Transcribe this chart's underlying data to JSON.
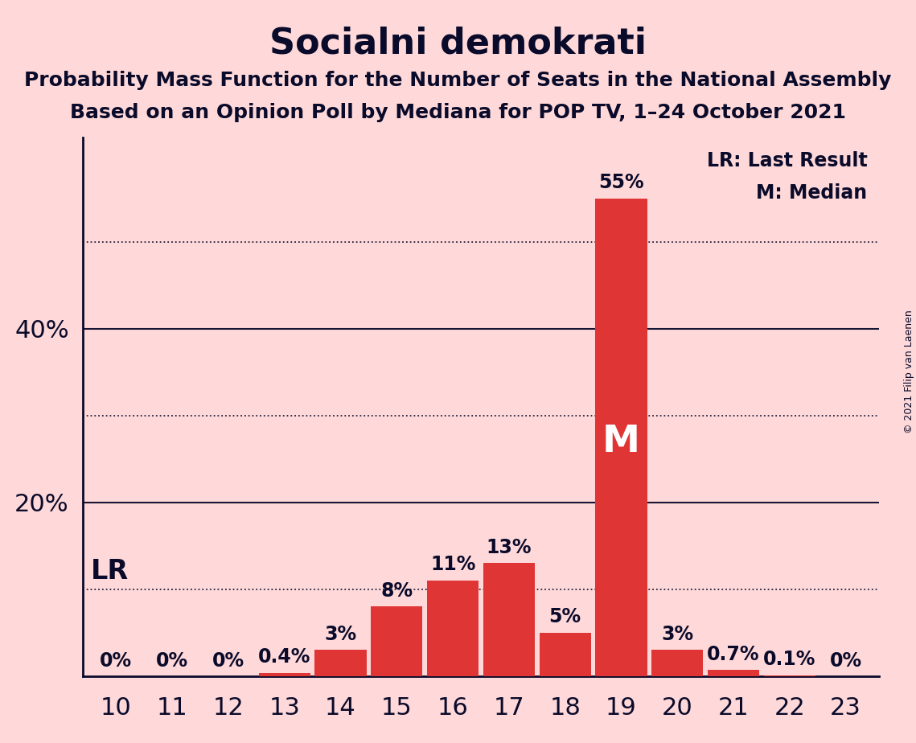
{
  "title": "Socialni demokrati",
  "subtitle1": "Probability Mass Function for the Number of Seats in the National Assembly",
  "subtitle2": "Based on an Opinion Poll by Mediana for POP TV, 1–24 October 2021",
  "copyright": "© 2021 Filip van Laenen",
  "seats": [
    10,
    11,
    12,
    13,
    14,
    15,
    16,
    17,
    18,
    19,
    20,
    21,
    22,
    23
  ],
  "probabilities": [
    0.0,
    0.0,
    0.0,
    0.4,
    3.0,
    8.0,
    11.0,
    13.0,
    5.0,
    55.0,
    3.0,
    0.7,
    0.1,
    0.0
  ],
  "bar_color": "#e03535",
  "background_color": "#ffd9d9",
  "text_color": "#0a0a2a",
  "bar_labels": [
    "0%",
    "0%",
    "0%",
    "0.4%",
    "3%",
    "8%",
    "11%",
    "13%",
    "5%",
    "55%",
    "3%",
    "0.7%",
    "0.1%",
    "0%"
  ],
  "yticks": [
    20,
    40
  ],
  "dotted_lines": [
    10,
    30,
    50
  ],
  "solid_lines": [
    20,
    40
  ],
  "lr_seat": 10,
  "median_seat": 19,
  "ylim": [
    0,
    62
  ],
  "legend_lr": "LR: Last Result",
  "legend_m": "M: Median",
  "lr_label": "LR",
  "median_label": "M",
  "title_fontsize": 32,
  "subtitle_fontsize": 18,
  "tick_fontsize": 22,
  "bar_label_fontsize": 17
}
